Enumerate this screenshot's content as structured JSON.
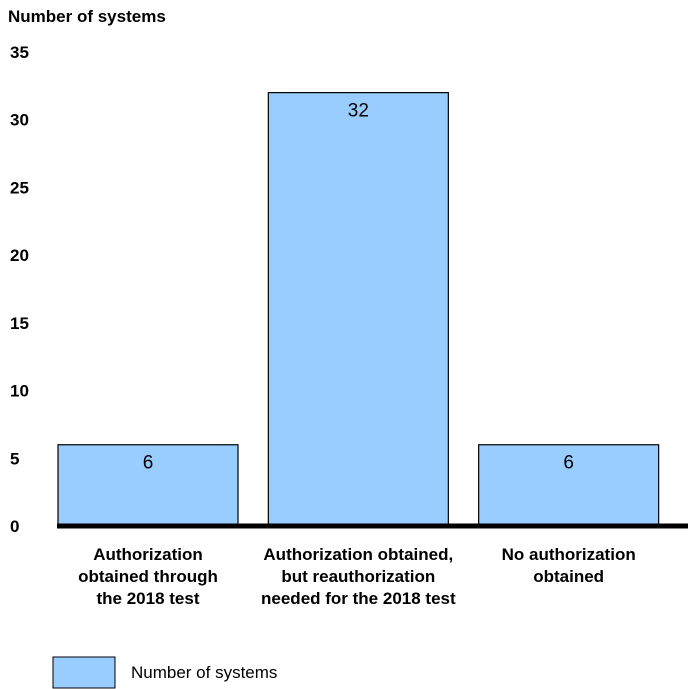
{
  "chart_data": {
    "type": "bar",
    "title": "",
    "ylabel": "Number of systems",
    "xlabel": "",
    "ylim": [
      0,
      35
    ],
    "yticks": [
      0,
      5,
      10,
      15,
      20,
      25,
      30,
      35
    ],
    "grid": false,
    "categories": [
      [
        "Authorization",
        "obtained through",
        "the 2018 test"
      ],
      [
        "Authorization obtained,",
        "but reauthorization",
        "needed for the 2018 test"
      ],
      [
        "No authorization",
        "obtained"
      ]
    ],
    "series": [
      {
        "name": "Number of systems",
        "values": [
          6,
          32,
          6
        ],
        "color": "#99ccff"
      }
    ],
    "legend_position": "bottom-left"
  }
}
